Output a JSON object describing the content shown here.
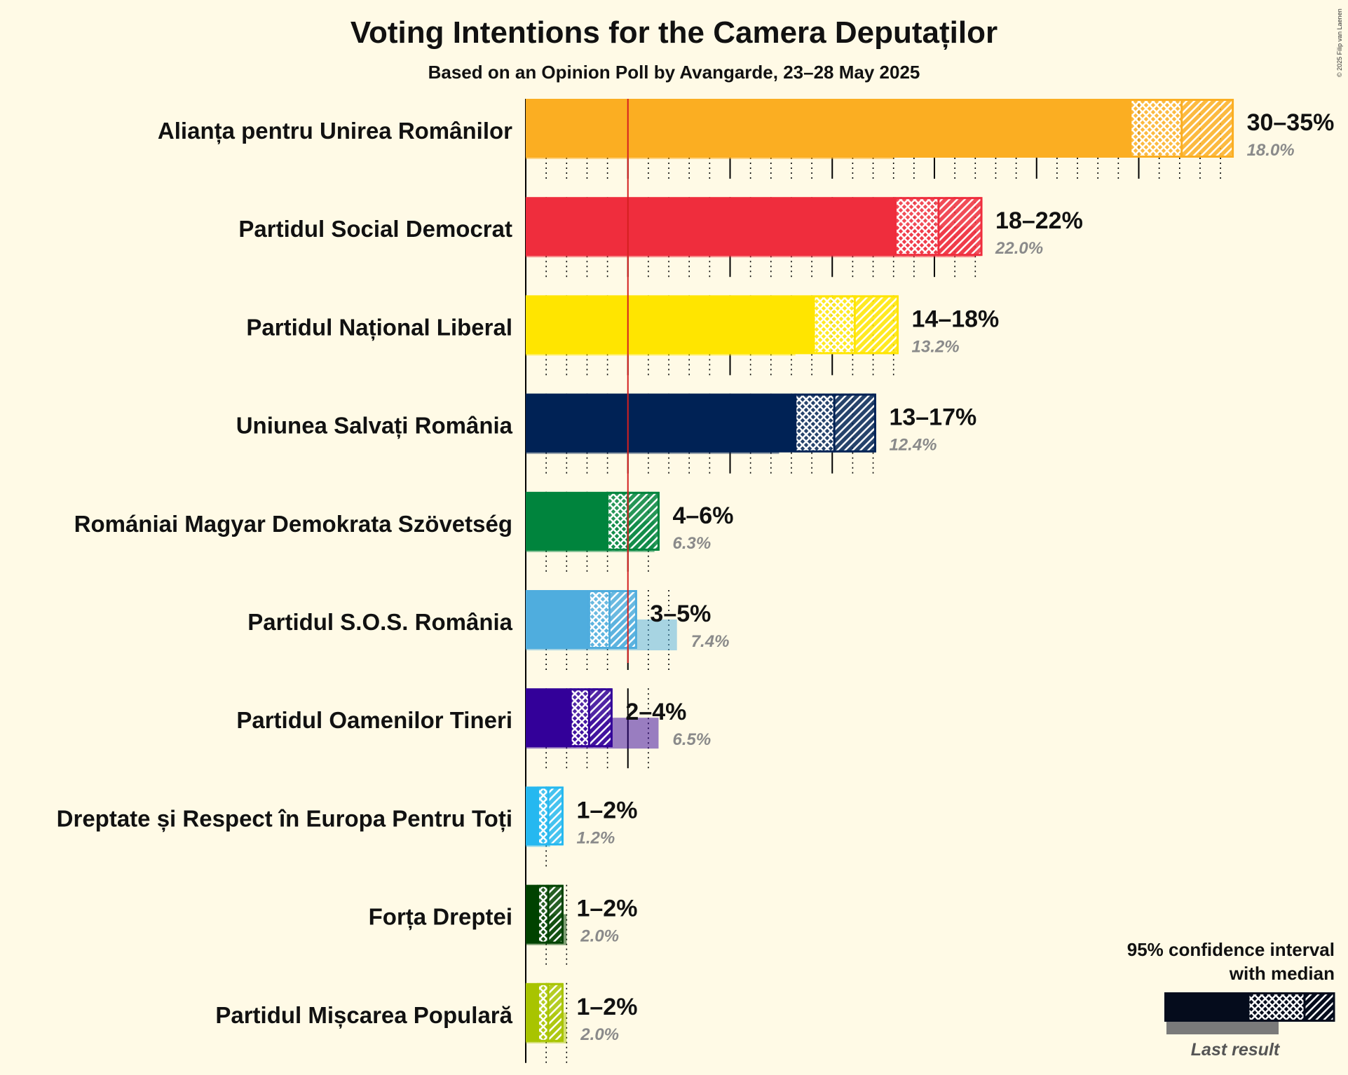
{
  "title": "Voting Intentions for the Camera Deputaților",
  "subtitle": "Based on an Opinion Poll by Avangarde, 23–28 May 2025",
  "copyright": "© 2025 Filip van Laenen",
  "legend": {
    "title_line1": "95% confidence interval",
    "title_line2": "with median",
    "last_result_label": "Last result"
  },
  "chart_data": {
    "type": "bar",
    "orientation": "horizontal",
    "unit": "%",
    "threshold": 5,
    "xlim": [
      0,
      35
    ],
    "parties": [
      {
        "name": "Alianța pentru Unirea Românilor",
        "ci_low": 29.6,
        "median": 32.1,
        "ci_high": 34.6,
        "range_label": "30–35%",
        "last": 18.0,
        "last_label": "18.0%",
        "color": "#fbae22"
      },
      {
        "name": "Partidul Social Democrat",
        "ci_low": 18.1,
        "median": 20.2,
        "ci_high": 22.3,
        "range_label": "18–22%",
        "last": 22.0,
        "last_label": "22.0%",
        "color": "#ef2d3d"
      },
      {
        "name": "Partidul Național Liberal",
        "ci_low": 14.1,
        "median": 16.1,
        "ci_high": 18.2,
        "range_label": "14–18%",
        "last": 13.2,
        "last_label": "13.2%",
        "color": "#ffe500"
      },
      {
        "name": "Uniunea Salvați România",
        "ci_low": 13.2,
        "median": 15.1,
        "ci_high": 17.1,
        "range_label": "13–17%",
        "last": 12.4,
        "last_label": "12.4%",
        "color": "#002255"
      },
      {
        "name": "Romániai Magyar Demokrata Szövetség",
        "ci_low": 4.0,
        "median": 5.0,
        "ci_high": 6.5,
        "range_label": "4–6%",
        "last": 6.3,
        "last_label": "6.3%",
        "color": "#00843d"
      },
      {
        "name": "Partidul S.O.S. România",
        "ci_low": 3.1,
        "median": 4.1,
        "ci_high": 5.4,
        "range_label": "3–5%",
        "last": 7.4,
        "last_label": "7.4%",
        "color": "#4fadde"
      },
      {
        "name": "Partidul Oamenilor Tineri",
        "ci_low": 2.2,
        "median": 3.1,
        "ci_high": 4.2,
        "range_label": "2–4%",
        "last": 6.5,
        "last_label": "6.5%",
        "color": "#330099"
      },
      {
        "name": "Dreptate și Respect în Europa Pentru Toți",
        "ci_low": 0.6,
        "median": 1.1,
        "ci_high": 1.8,
        "range_label": "1–2%",
        "last": 1.2,
        "last_label": "1.2%",
        "color": "#25b8f0"
      },
      {
        "name": "Forța Dreptei",
        "ci_low": 0.6,
        "median": 1.1,
        "ci_high": 1.8,
        "range_label": "1–2%",
        "last": 2.0,
        "last_label": "2.0%",
        "color": "#004200"
      },
      {
        "name": "Partidul Mișcarea Populară",
        "ci_low": 0.6,
        "median": 1.1,
        "ci_high": 1.8,
        "range_label": "1–2%",
        "last": 2.0,
        "last_label": "2.0%",
        "color": "#a8c400"
      }
    ]
  }
}
